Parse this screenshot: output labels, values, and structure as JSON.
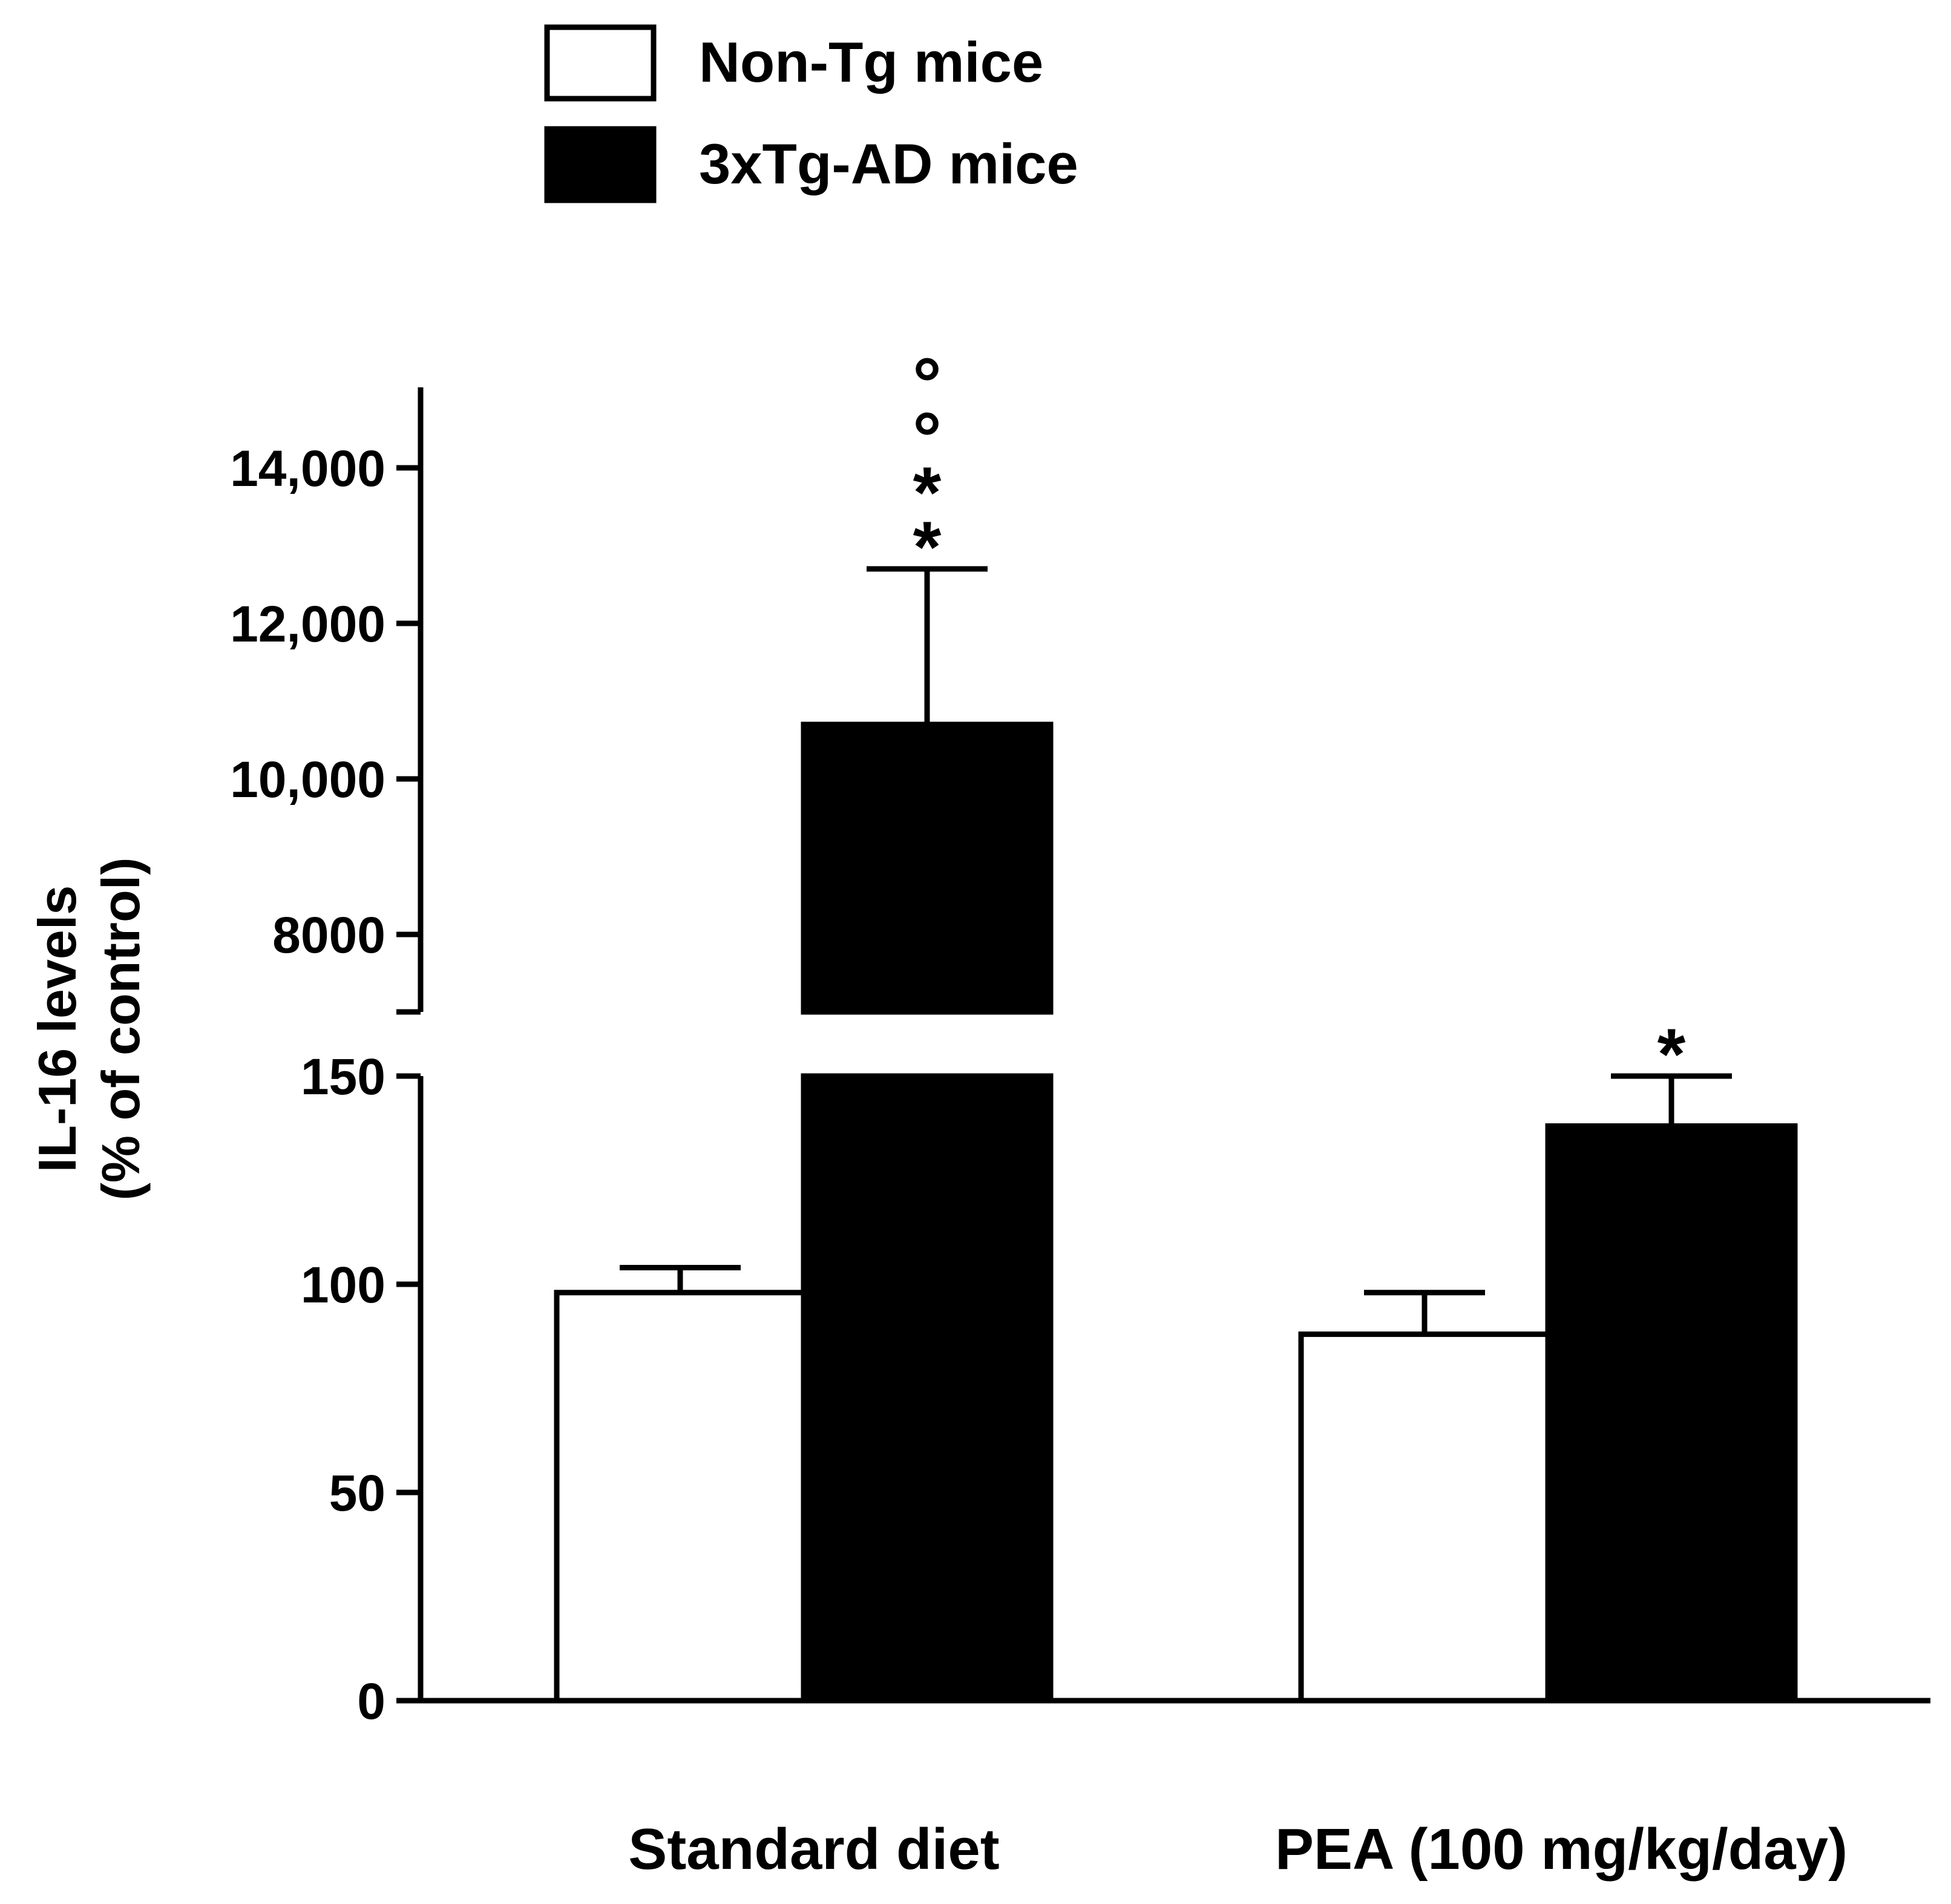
{
  "chart_data": {
    "type": "bar",
    "ylabel_line1": "IL-16 levels",
    "ylabel_line2": "(% of control)",
    "categories": [
      "Standard diet",
      "PEA (100 mg/kg/day)"
    ],
    "series": [
      {
        "name": "Non-Tg mice",
        "color": "#ffffff",
        "values": [
          98,
          88
        ],
        "errors": [
          6,
          10
        ],
        "significance": [
          "",
          ""
        ]
      },
      {
        "name": "3xTg-AD mice",
        "color": "#000000",
        "values": [
          10700,
          138
        ],
        "errors": [
          2000,
          12
        ],
        "significance": [
          "**°°",
          "*"
        ]
      }
    ],
    "y_axis_broken": true,
    "lower_segment": {
      "ylim": [
        0,
        150
      ],
      "ticks": [
        0,
        50,
        100,
        150
      ],
      "tick_labels": [
        "0",
        "50",
        "100",
        "150"
      ]
    },
    "upper_segment": {
      "ylim": [
        7000,
        15000
      ],
      "ticks": [
        8000,
        10000,
        12000,
        14000
      ],
      "tick_labels": [
        "8000",
        "10,000",
        "12,000",
        "14,000"
      ]
    },
    "legend_position": "top-left",
    "grid": false
  }
}
